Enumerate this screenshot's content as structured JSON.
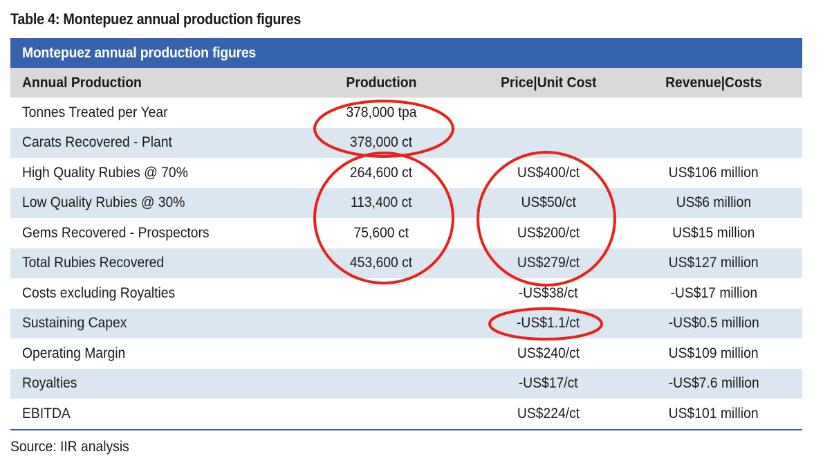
{
  "caption": "Table 4: Montepuez annual production figures",
  "table": {
    "title": "Montepuez annual production figures",
    "columns": [
      "Annual Production",
      "Production",
      "Price|Unit Cost",
      "Revenue|Costs"
    ],
    "rows": [
      [
        "Tonnes Treated per Year",
        "378,000 tpa",
        "",
        ""
      ],
      [
        "Carats Recovered - Plant",
        "378,000 ct",
        "",
        ""
      ],
      [
        "High Quality Rubies @ 70%",
        "264,600 ct",
        "US$400/ct",
        "US$106 million"
      ],
      [
        "Low Quality Rubies @ 30%",
        "113,400 ct",
        "US$50/ct",
        "US$6 million"
      ],
      [
        "Gems Recovered - Prospectors",
        "75,600 ct",
        "US$200/ct",
        "US$15 million"
      ],
      [
        "Total Rubies Recovered",
        "453,600 ct",
        "US$279/ct",
        "US$127 million"
      ],
      [
        "Costs excluding Royalties",
        "",
        "-US$38/ct",
        "-US$17 million"
      ],
      [
        "Sustaining Capex",
        "",
        "-US$1.1/ct",
        "-US$0.5 million"
      ],
      [
        "Operating Margin",
        "",
        "US$240/ct",
        "US$109 million"
      ],
      [
        "Royalties",
        "",
        "-US$17/ct",
        "-US$7.6 million"
      ],
      [
        "EBITDA",
        "",
        "US$224/ct",
        "US$101 million"
      ]
    ]
  },
  "source": "Source: IIR analysis",
  "colors": {
    "title_bar": "#3563ad",
    "header_row": "#d9d9d9",
    "shaded_row": "#dce6f1",
    "annotation_circle": "#e8221b"
  }
}
